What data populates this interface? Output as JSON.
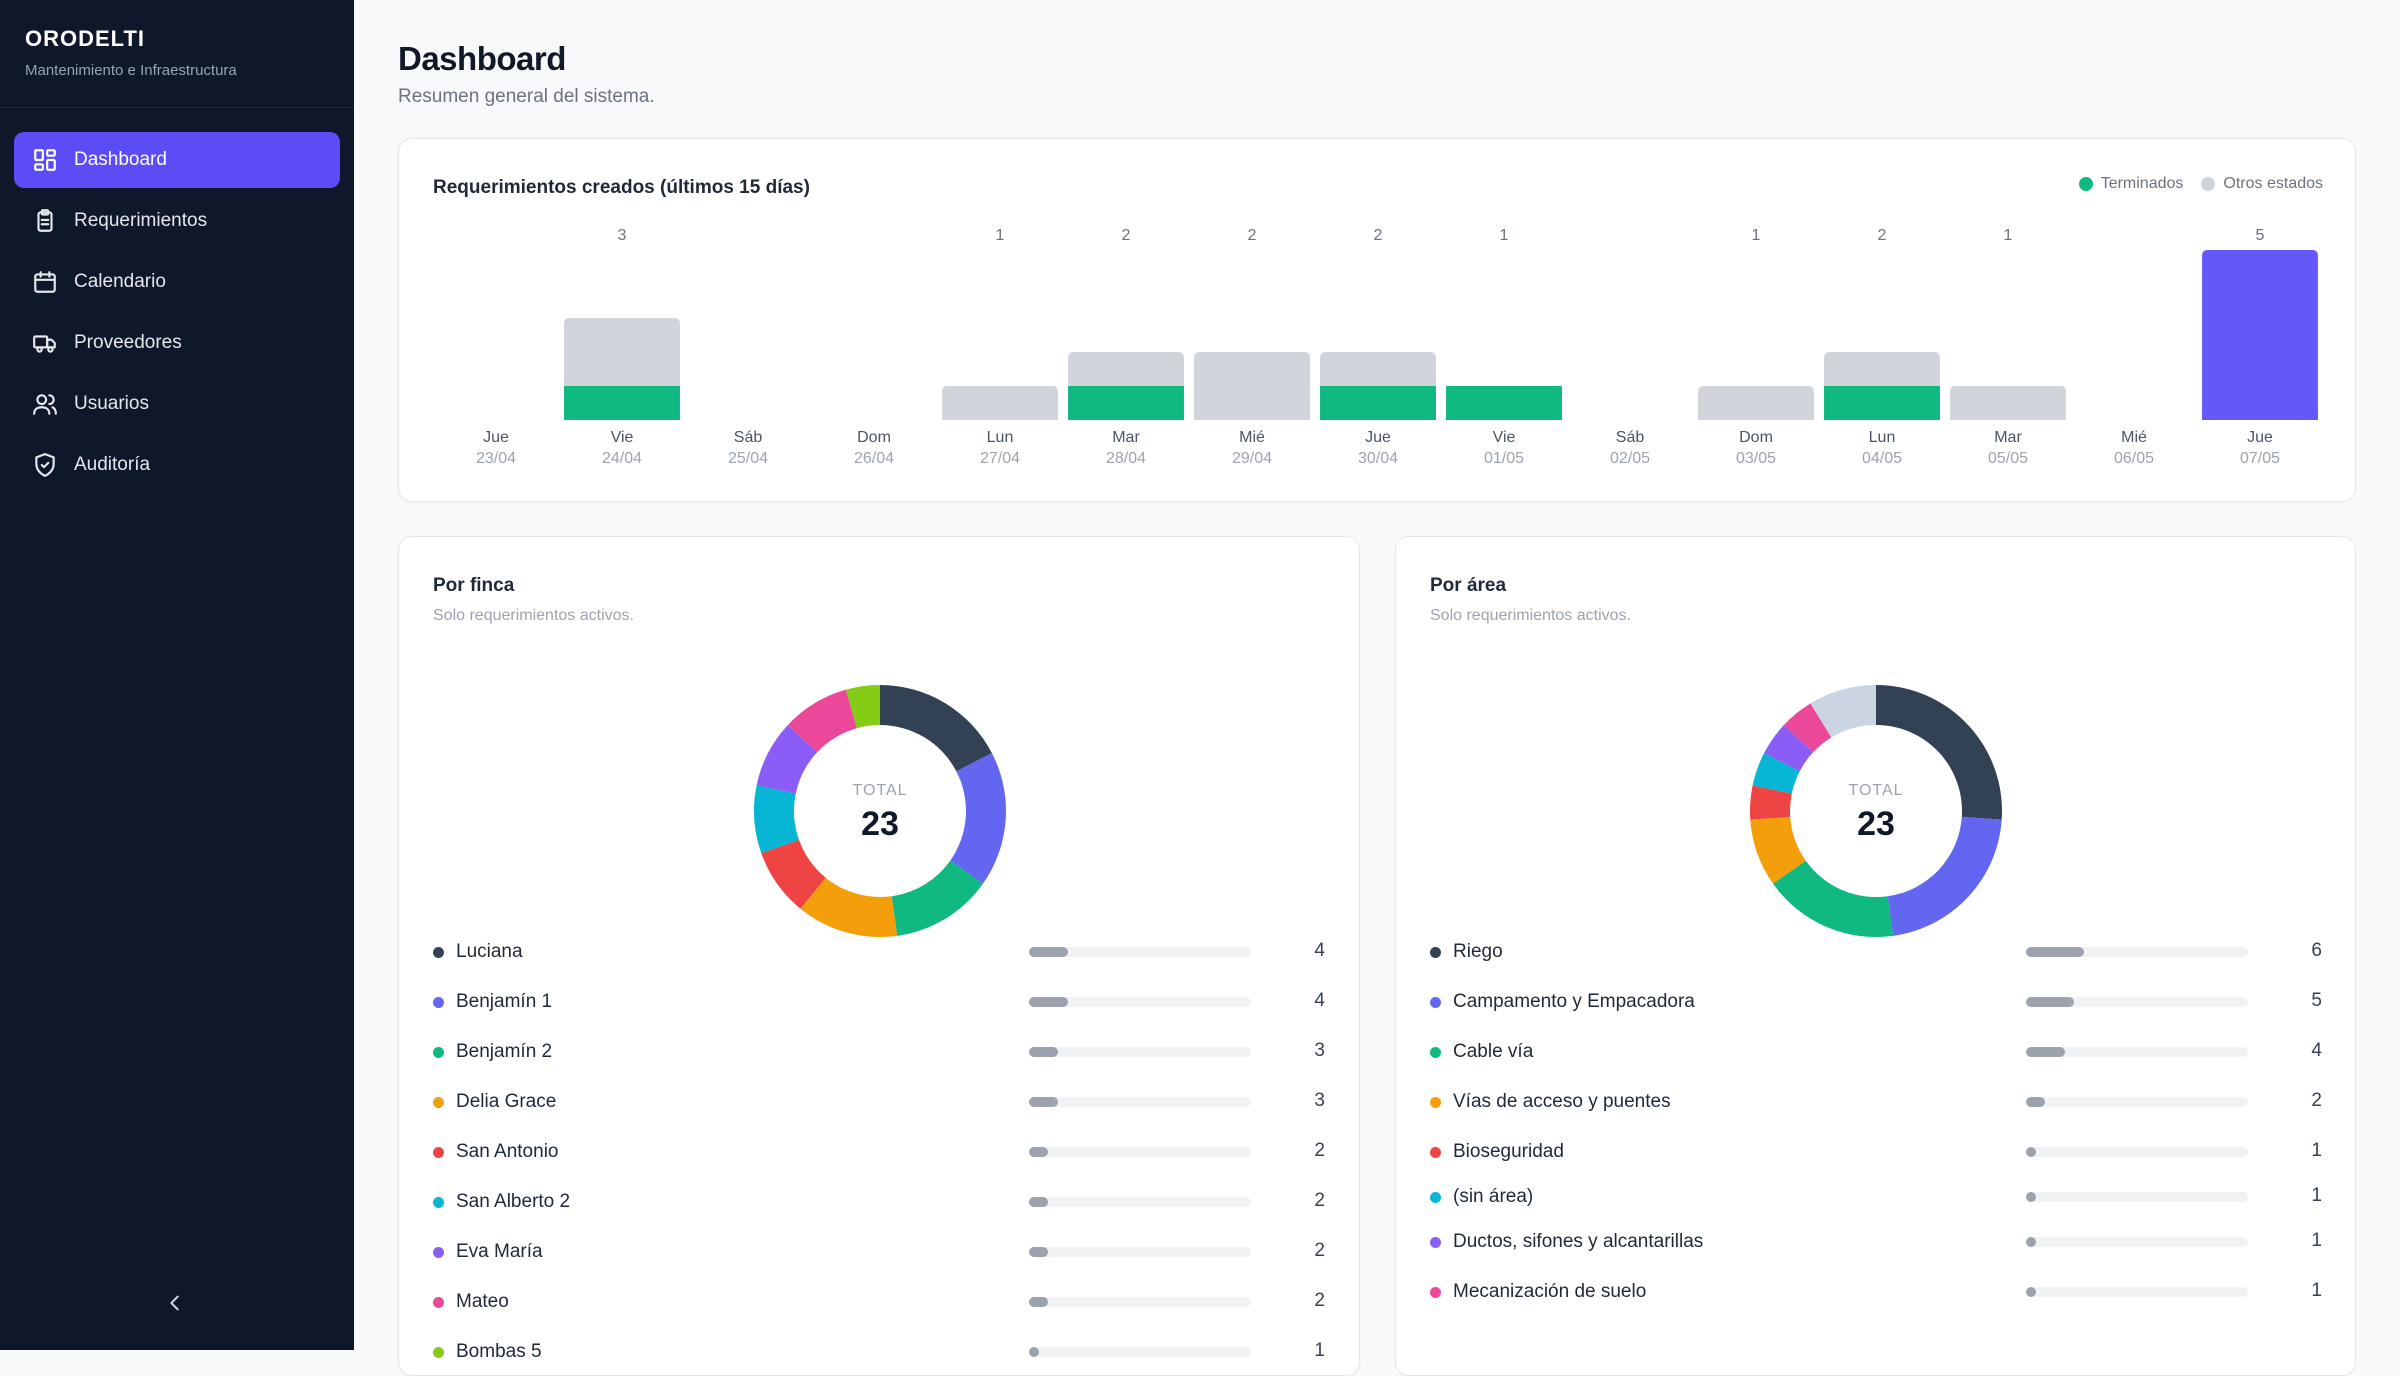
{
  "sidebar": {
    "brand": "ORODELTI",
    "brand_sub": "Mantenimiento e Infraestructura",
    "items": [
      {
        "label": "Dashboard",
        "icon": "dashboard-icon",
        "active": true
      },
      {
        "label": "Requerimientos",
        "icon": "clipboard-icon",
        "active": false
      },
      {
        "label": "Calendario",
        "icon": "calendar-icon",
        "active": false
      },
      {
        "label": "Proveedores",
        "icon": "truck-icon",
        "active": false
      },
      {
        "label": "Usuarios",
        "icon": "users-icon",
        "active": false
      },
      {
        "label": "Auditoría",
        "icon": "shield-icon",
        "active": false
      }
    ],
    "collapse_icon": "chevron-left-icon"
  },
  "header": {
    "title": "Dashboard",
    "subtitle": "Resumen general del sistema."
  },
  "colors": {
    "accent": "#5b4cf5",
    "done": "#10b981",
    "other": "#d1d5db",
    "today": "#6359f8"
  },
  "chart_data": [
    {
      "type": "bar",
      "title": "Requerimientos creados (últimos 15 días)",
      "legend": [
        "Terminados",
        "Otros estados"
      ],
      "legend_placement": "top-right",
      "categories": [
        "Jue",
        "Vie",
        "Sáb",
        "Dom",
        "Lun",
        "Mar",
        "Mié",
        "Jue",
        "Vie",
        "Sáb",
        "Dom",
        "Lun",
        "Mar",
        "Mié",
        "Jue"
      ],
      "dates": [
        "23/04",
        "24/04",
        "25/04",
        "26/04",
        "27/04",
        "28/04",
        "29/04",
        "30/04",
        "01/05",
        "02/05",
        "03/05",
        "04/05",
        "05/05",
        "06/05",
        "07/05"
      ],
      "totals": [
        0,
        3,
        0,
        0,
        1,
        2,
        2,
        2,
        1,
        0,
        1,
        2,
        1,
        0,
        5
      ],
      "terminados": [
        0,
        1,
        0,
        0,
        0,
        1,
        0,
        1,
        1,
        0,
        0,
        1,
        0,
        0,
        0
      ],
      "highlight_index": 14,
      "ylim": [
        0,
        5
      ]
    },
    {
      "type": "pie",
      "title": "Por finca",
      "subtitle": "Solo requerimientos activos.",
      "total_label": "TOTAL",
      "total": "23",
      "labels": [
        "Luciana",
        "Benjamín 1",
        "Benjamín 2",
        "Delia Grace",
        "San Antonio",
        "San Alberto 2",
        "Eva María",
        "Mateo",
        "Bombas 5"
      ],
      "values": [
        4,
        4,
        3,
        3,
        2,
        2,
        2,
        2,
        1
      ],
      "colors": [
        "#334155",
        "#6366f1",
        "#10b981",
        "#f59e0b",
        "#ef4444",
        "#06b6d4",
        "#8b5cf6",
        "#ec4899",
        "#84cc16"
      ]
    },
    {
      "type": "pie",
      "title": "Por área",
      "subtitle": "Solo requerimientos activos.",
      "total_label": "TOTAL",
      "total": "23",
      "labels": [
        "Riego",
        "Campamento y Empacadora",
        "Cable vía",
        "Vías de acceso y puentes",
        "Bioseguridad",
        "(sin área)",
        "Ductos, sifones y alcantarillas",
        "Mecanización de suelo"
      ],
      "values": [
        6,
        5,
        4,
        2,
        1,
        1,
        1,
        1
      ],
      "colors": [
        "#334155",
        "#6366f1",
        "#10b981",
        "#f59e0b",
        "#ef4444",
        "#06b6d4",
        "#8b5cf6",
        "#ec4899"
      ],
      "remainder_value": 2,
      "remainder_color": "#cbd5e1"
    }
  ]
}
